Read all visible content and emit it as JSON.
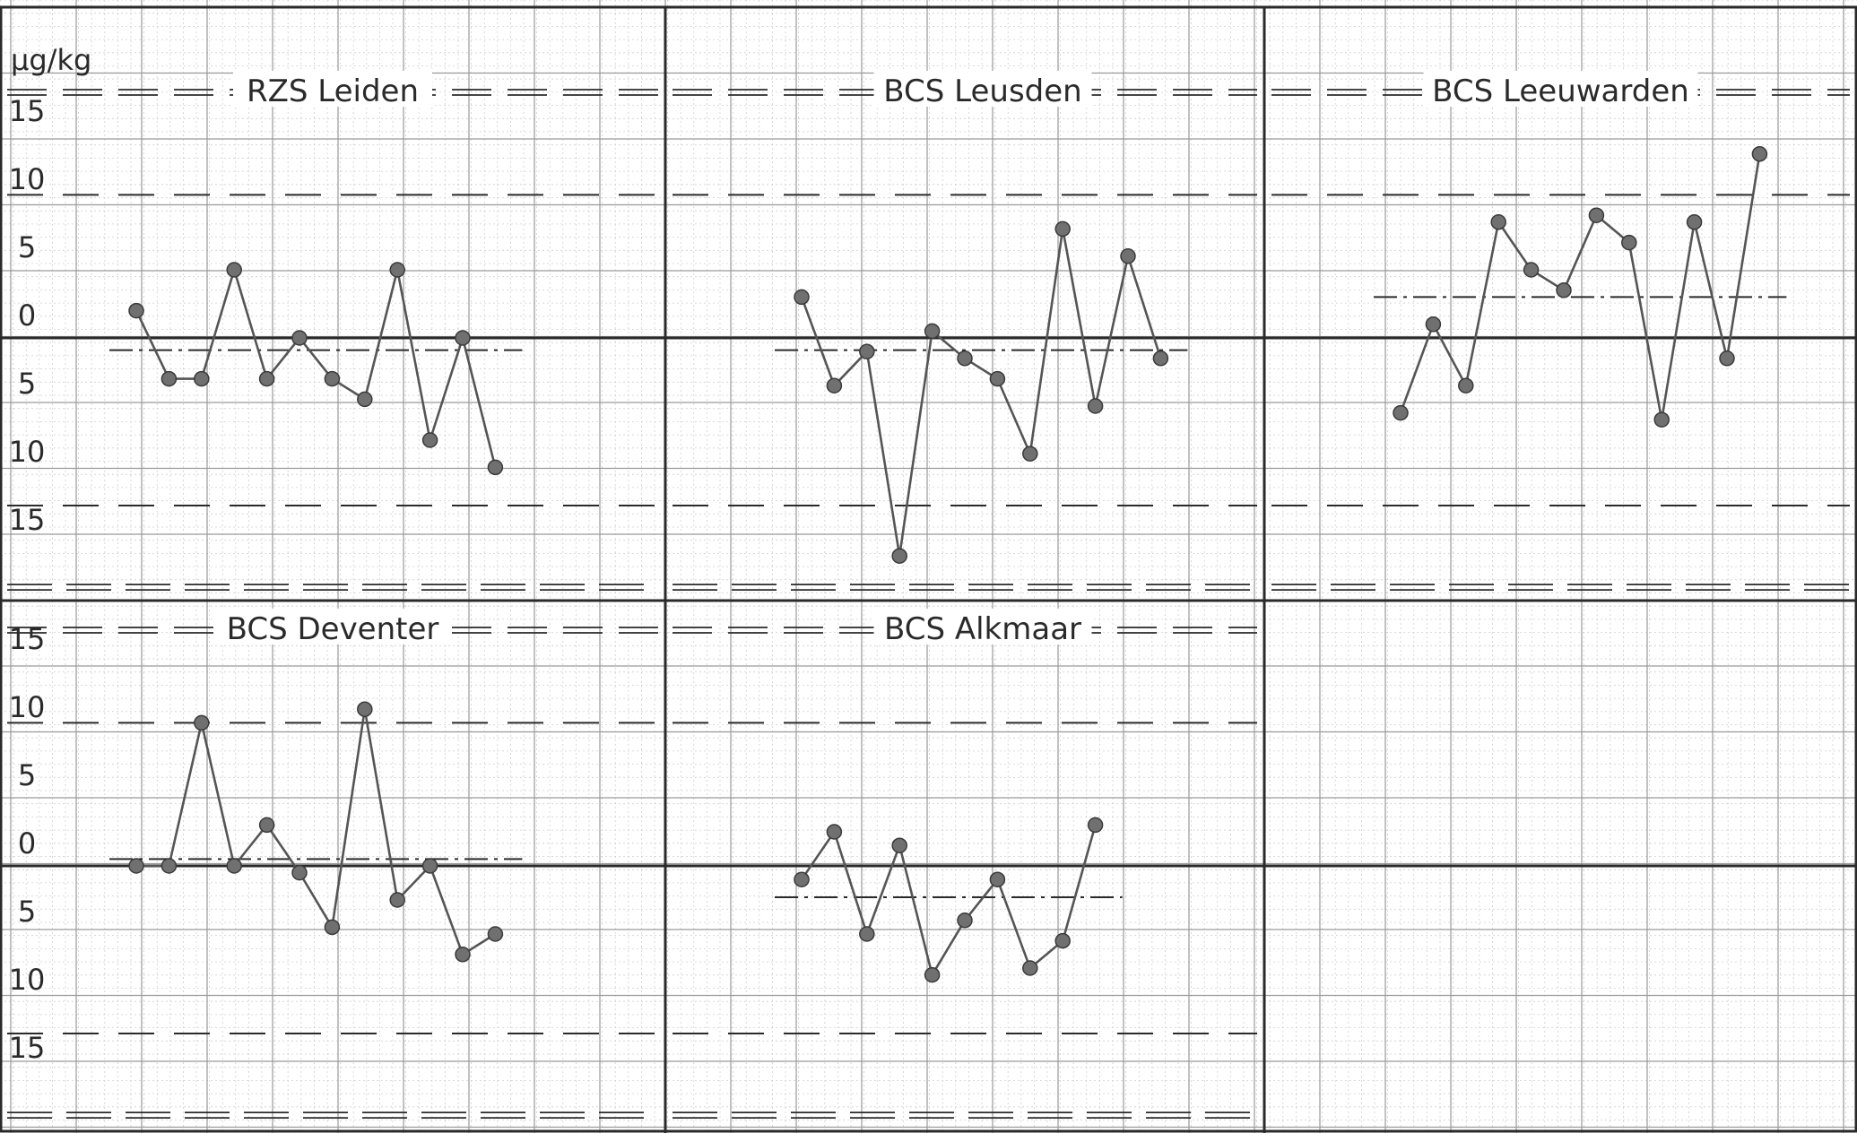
{
  "unit_label": "µg/kg",
  "tick_labels": [
    "15",
    "10",
    "5",
    "0",
    "5",
    "10",
    "15"
  ],
  "colors": {
    "paper": "#ffffff",
    "grid_major": "#9a9a9a",
    "grid_minor": "#cfcfcf",
    "line": "#555555",
    "marker": "#707070",
    "ink": "#2a2a2a"
  },
  "chart_data": [
    {
      "type": "line",
      "title": "RZS Leiden",
      "ylim": [
        -18,
        18
      ],
      "reference_lines": {
        "zero": 0,
        "warning": [
          10.5,
          -12.3
        ],
        "action": -18.3,
        "mean": -0.9
      },
      "series": [
        {
          "values": [
            2,
            -3,
            -3,
            5,
            -3,
            0,
            -3,
            -4.5,
            5,
            -7.5,
            0,
            -9.5
          ]
        }
      ]
    },
    {
      "type": "line",
      "title": "BCS Leusden",
      "ylim": [
        -18,
        18
      ],
      "reference_lines": {
        "zero": 0,
        "warning": [
          10.5,
          -12.3
        ],
        "action": -18.3,
        "mean": -0.9
      },
      "series": [
        {
          "values": [
            3,
            -3.5,
            -1,
            -16,
            0.5,
            -1.5,
            -3,
            -8.5,
            8,
            -5,
            6,
            -1.5
          ]
        }
      ]
    },
    {
      "type": "line",
      "title": "BCS Leeuwarden",
      "ylim": [
        -18,
        18
      ],
      "reference_lines": {
        "zero": 0,
        "warning": [
          10.5,
          -12.3
        ],
        "action": -18.3,
        "mean": 3
      },
      "series": [
        {
          "values": [
            -5.5,
            1,
            -3.5,
            8.5,
            5,
            3.5,
            9,
            7,
            -6,
            8.5,
            -1.5,
            13.5
          ]
        }
      ]
    },
    {
      "type": "line",
      "title": "BCS Deventer",
      "ylim": [
        -18,
        18
      ],
      "reference_lines": {
        "zero": 0,
        "warning": [
          10.5,
          -12.3
        ],
        "action": -18.3,
        "mean": 0.5
      },
      "series": [
        {
          "values": [
            0,
            0,
            10.5,
            0,
            3,
            -0.5,
            -4.5,
            11.5,
            -2.5,
            0,
            -6.5,
            -5
          ]
        }
      ]
    },
    {
      "type": "line",
      "title": "BCS Alkmaar",
      "ylim": [
        -18,
        18
      ],
      "reference_lines": {
        "zero": 0,
        "warning": [
          10.5,
          -12.3
        ],
        "action": -18.3,
        "mean": -2.3
      },
      "series": [
        {
          "values": [
            -1,
            2.5,
            -5,
            1.5,
            -8,
            -4,
            -1,
            -7.5,
            -5.5,
            3
          ]
        }
      ]
    }
  ]
}
